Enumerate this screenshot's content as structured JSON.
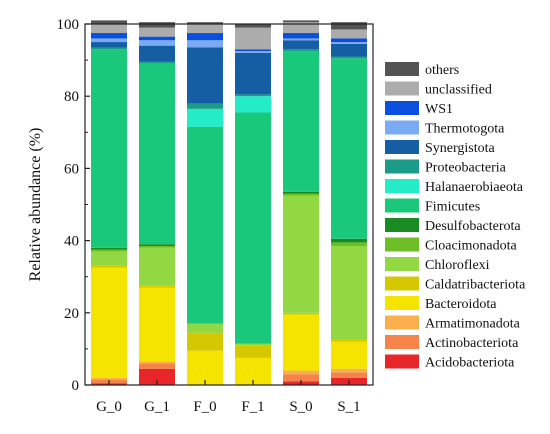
{
  "chart_data": {
    "type": "stacked-bar",
    "categories": [
      "G_0",
      "G_1",
      "F_0",
      "F_1",
      "S_0",
      "S_1"
    ],
    "ylabel": "Relative abundance (%)",
    "xlabel": "",
    "title": "",
    "ylim": [
      0,
      100
    ],
    "yticks": [
      0,
      20,
      40,
      60,
      80,
      100
    ],
    "grid": false,
    "legend_position": "right",
    "series": [
      {
        "name": "Acidobacteriota",
        "color": "#e8262a",
        "values": [
          0.5,
          4.5,
          0.0,
          0.0,
          1.0,
          2.0
        ]
      },
      {
        "name": "Actinobacteriota",
        "color": "#f6834a",
        "values": [
          1.0,
          1.5,
          0.0,
          0.0,
          2.0,
          1.5
        ]
      },
      {
        "name": "Armatimonadota",
        "color": "#f9b04c",
        "values": [
          0.5,
          0.5,
          0.0,
          0.0,
          1.0,
          1.0
        ]
      },
      {
        "name": "Bacteroidota",
        "color": "#f4e400",
        "values": [
          30.5,
          20.5,
          9.5,
          7.5,
          15.5,
          7.5
        ]
      },
      {
        "name": "Caldatribacteriota",
        "color": "#d5c800",
        "values": [
          0.5,
          0.5,
          5.0,
          3.5,
          0.5,
          0.5
        ]
      },
      {
        "name": "Chloroflexi",
        "color": "#92d843",
        "values": [
          4.0,
          10.5,
          2.5,
          0.5,
          32.5,
          26.0
        ]
      },
      {
        "name": "Cloacimonadota",
        "color": "#6ebe27",
        "values": [
          0.5,
          0.5,
          0.0,
          0.0,
          0.5,
          1.0
        ]
      },
      {
        "name": "Desulfobacterota",
        "color": "#1a8a22",
        "values": [
          0.5,
          0.5,
          0.0,
          0.0,
          0.5,
          1.0
        ]
      },
      {
        "name": "Fimicutes",
        "color": "#19c87a",
        "values": [
          55.0,
          50.0,
          54.5,
          64.0,
          39.0,
          50.0
        ]
      },
      {
        "name": "Halanaerobiaeota",
        "color": "#24ecc6",
        "values": [
          0.0,
          0.0,
          5.0,
          4.5,
          0.0,
          0.0
        ]
      },
      {
        "name": "Proteobacteria",
        "color": "#1b9c8a",
        "values": [
          0.5,
          0.5,
          1.5,
          0.5,
          0.5,
          0.5
        ]
      },
      {
        "name": "Synergistota",
        "color": "#165ea3",
        "values": [
          1.5,
          4.5,
          15.5,
          11.5,
          2.5,
          3.5
        ]
      },
      {
        "name": "Thermotogota",
        "color": "#7aaaf2",
        "values": [
          1.0,
          1.5,
          2.0,
          0.5,
          0.5,
          0.5
        ]
      },
      {
        "name": "WS1",
        "color": "#0b4fe0",
        "values": [
          1.5,
          1.0,
          2.0,
          0.5,
          1.5,
          1.0
        ]
      },
      {
        "name": "unclassified",
        "color": "#acacac",
        "values": [
          2.5,
          2.5,
          2.5,
          6.0,
          3.0,
          2.5
        ]
      },
      {
        "name": "others",
        "color": "#535353",
        "values": [
          1.0,
          1.5,
          0.5,
          1.0,
          0.5,
          2.0
        ]
      }
    ]
  }
}
